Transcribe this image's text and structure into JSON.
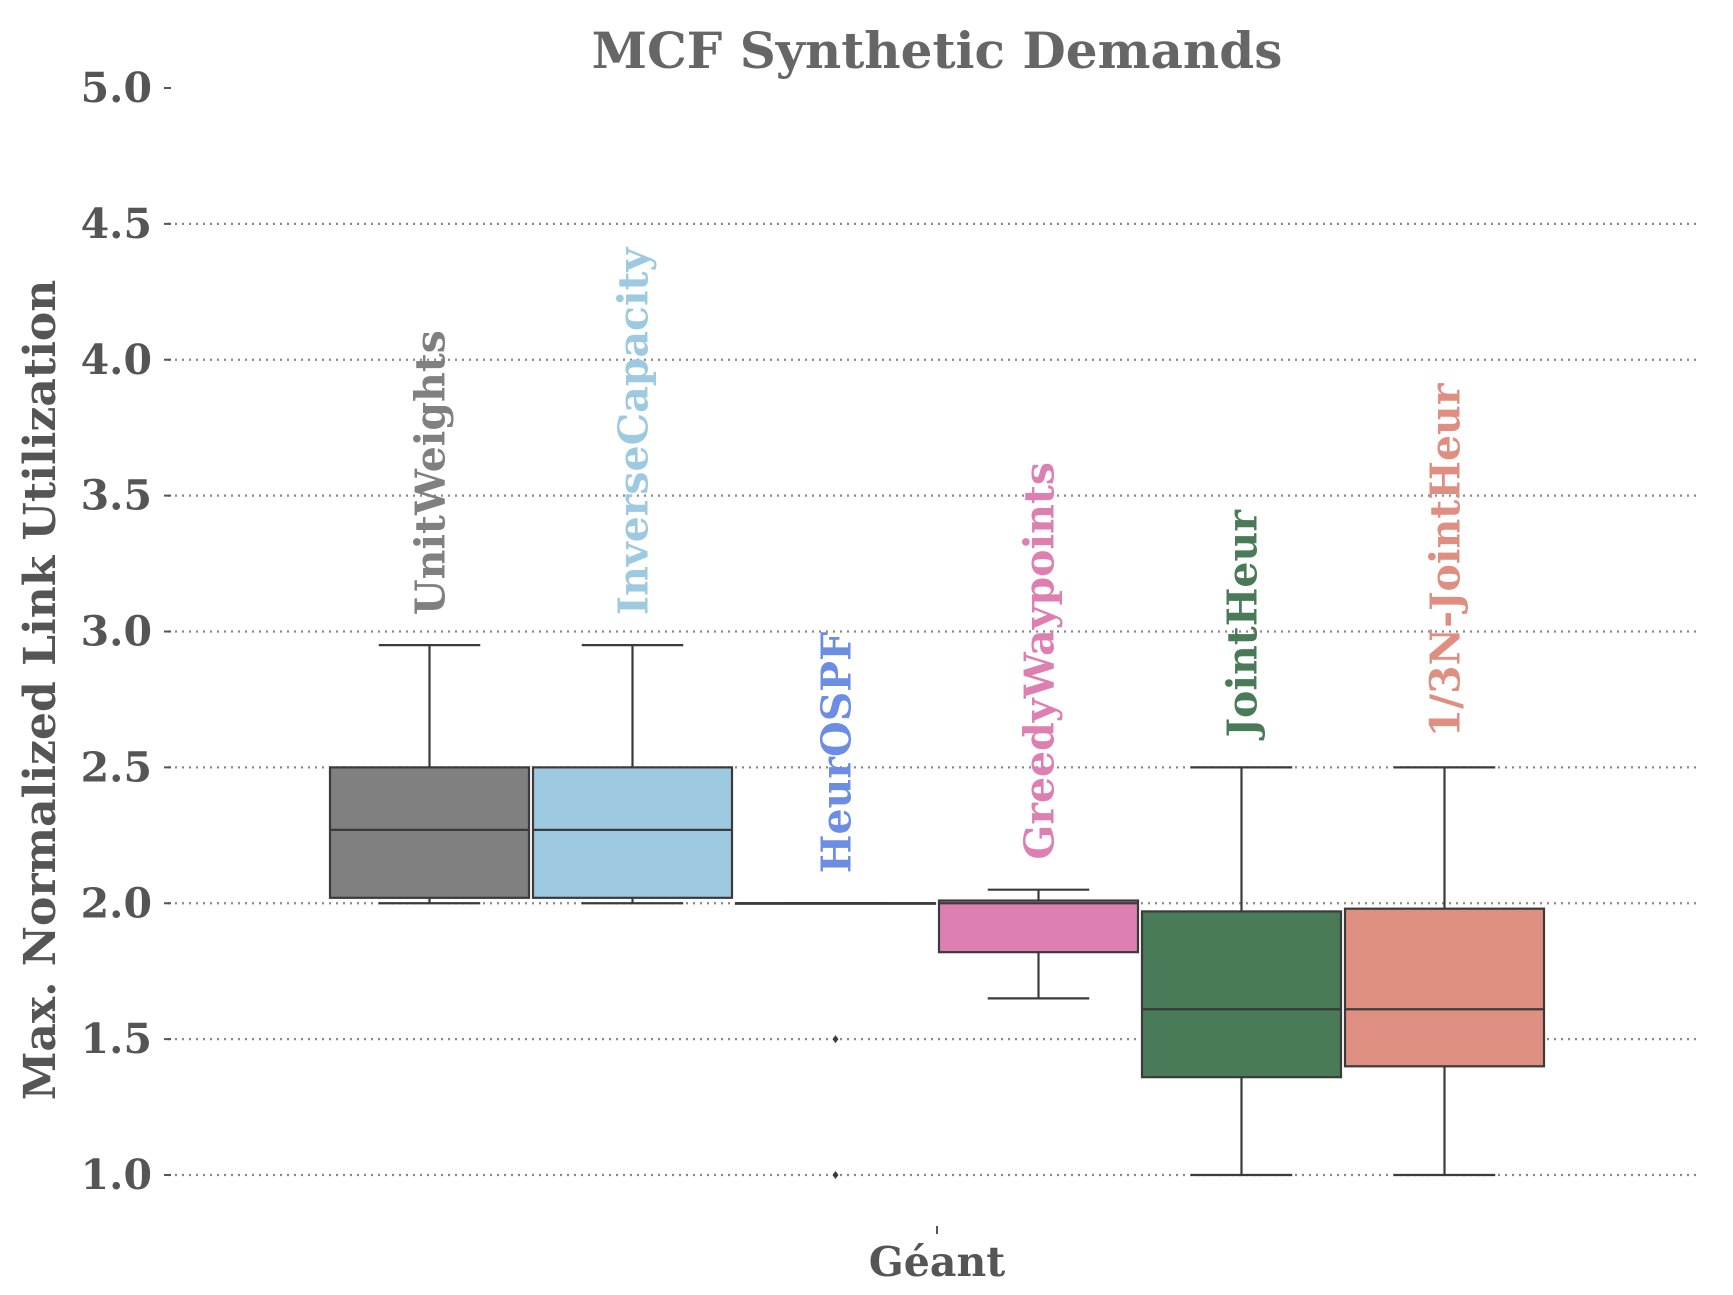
{
  "chart_data": {
    "type": "box",
    "title": "MCF Synthetic Demands",
    "ylabel": "Max. Normalized Link Utilization",
    "xlabel": "",
    "categories": [
      "Géant"
    ],
    "ylim": [
      1.0,
      5.0
    ],
    "yticks": [
      "1.0",
      "1.5",
      "2.0",
      "2.5",
      "3.0",
      "3.5",
      "4.0",
      "4.5",
      "5.0"
    ],
    "grid": true,
    "series": [
      {
        "name": "UnitWeights",
        "color": "#808080",
        "whisker_low": 2.0,
        "q1": 2.02,
        "median": 2.27,
        "q3": 2.5,
        "whisker_high": 2.95,
        "outliers": []
      },
      {
        "name": "InverseCapacity",
        "color": "#9ecae1",
        "whisker_low": 2.0,
        "q1": 2.02,
        "median": 2.27,
        "q3": 2.5,
        "whisker_high": 2.95,
        "outliers": []
      },
      {
        "name": "HeurOSPF",
        "color": "#6b8de3",
        "whisker_low": 2.0,
        "q1": 2.0,
        "median": 2.0,
        "q3": 2.0,
        "whisker_high": 2.0,
        "outliers": [
          1.5,
          1.0
        ]
      },
      {
        "name": "GreedyWaypoints",
        "color": "#de7fb2",
        "whisker_low": 1.65,
        "q1": 1.82,
        "median": 2.0,
        "q3": 2.01,
        "whisker_high": 2.05,
        "outliers": []
      },
      {
        "name": "JointHeur",
        "color": "#4a7b58",
        "whisker_low": 1.0,
        "q1": 1.36,
        "median": 1.61,
        "q3": 1.97,
        "whisker_high": 2.5,
        "outliers": []
      },
      {
        "name": "1/3N-JointHeur",
        "color": "#de8f81",
        "whisker_low": 1.0,
        "q1": 1.4,
        "median": 1.61,
        "q3": 1.98,
        "whisker_high": 2.5,
        "outliers": []
      }
    ]
  }
}
